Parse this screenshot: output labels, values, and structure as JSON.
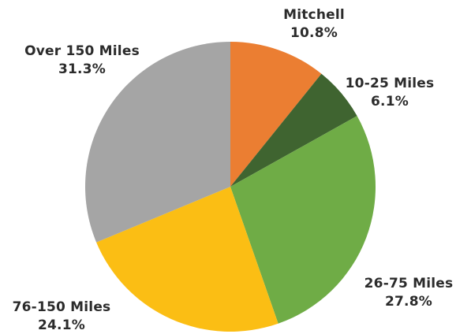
{
  "chart_data": {
    "type": "pie",
    "title": "",
    "start": "12 o'clock",
    "direction": "clockwise",
    "slices": [
      {
        "name": "Mitchell",
        "value": 10.8,
        "label": "Mitchell",
        "value_label": "10.8%",
        "color": "#EB7E32"
      },
      {
        "name": "10-25 Miles",
        "value": 6.1,
        "label": "10-25 Miles",
        "value_label": "6.1%",
        "color": "#3F6430"
      },
      {
        "name": "26-75 Miles",
        "value": 27.8,
        "label": "26-75 Miles",
        "value_label": "27.8%",
        "color": "#6FAC46"
      },
      {
        "name": "76-150 Miles",
        "value": 24.1,
        "label": "76-150 Miles",
        "value_label": "24.1%",
        "color": "#FBBE14"
      },
      {
        "name": "Over 150 Miles",
        "value": 31.3,
        "label": "Over 150 Miles",
        "value_label": "31.3%",
        "color": "#A5A5A5"
      }
    ]
  }
}
